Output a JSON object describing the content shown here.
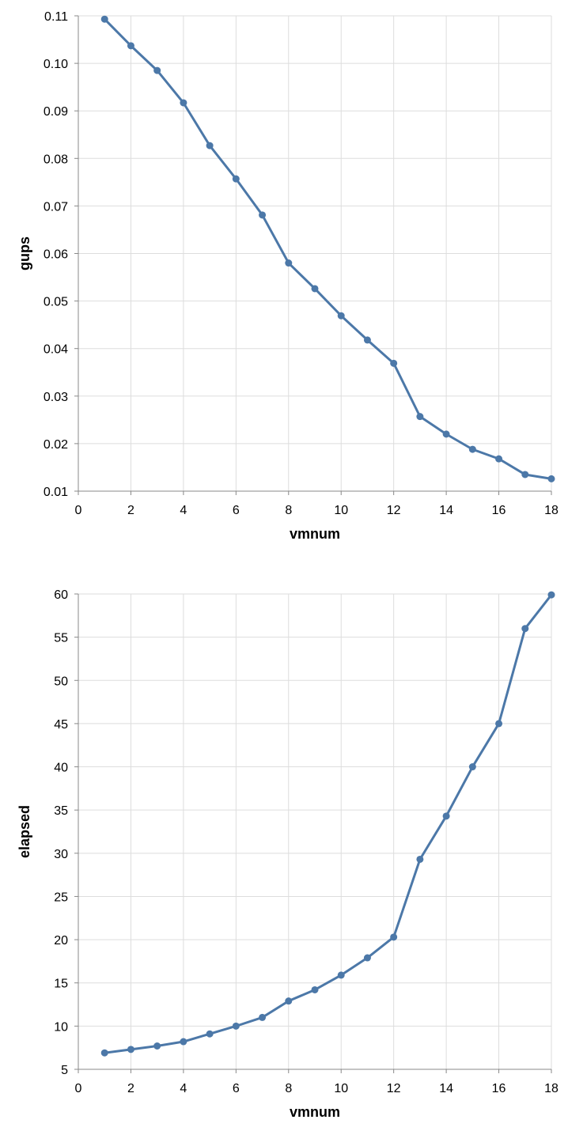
{
  "colors": {
    "series": "#4c78a8",
    "grid": "#dddddd",
    "axis": "#888888"
  },
  "chart_data": [
    {
      "type": "line",
      "xlabel": "vmnum",
      "ylabel": "gups",
      "xlim": [
        0,
        18
      ],
      "ylim": [
        0.01,
        0.11
      ],
      "x_ticks": [
        0,
        2,
        4,
        6,
        8,
        10,
        12,
        14,
        16,
        18
      ],
      "y_ticks": [
        "0.01",
        "0.02",
        "0.03",
        "0.04",
        "0.05",
        "0.06",
        "0.07",
        "0.08",
        "0.09",
        "0.10",
        "0.11"
      ],
      "grid": true,
      "markers": true,
      "x": [
        1,
        2,
        3,
        4,
        5,
        6,
        7,
        8,
        9,
        10,
        11,
        12,
        13,
        14,
        15,
        16,
        17,
        18
      ],
      "y": [
        0.1093,
        0.1037,
        0.0985,
        0.0917,
        0.0827,
        0.0757,
        0.0681,
        0.058,
        0.0526,
        0.0469,
        0.0418,
        0.0369,
        0.0257,
        0.022,
        0.0188,
        0.0168,
        0.0135,
        0.0126
      ]
    },
    {
      "type": "line",
      "xlabel": "vmnum",
      "ylabel": "elapsed",
      "xlim": [
        0,
        18
      ],
      "ylim": [
        5,
        60
      ],
      "x_ticks": [
        0,
        2,
        4,
        6,
        8,
        10,
        12,
        14,
        16,
        18
      ],
      "y_ticks": [
        "5",
        "10",
        "15",
        "20",
        "25",
        "30",
        "35",
        "40",
        "45",
        "50",
        "55",
        "60"
      ],
      "grid": true,
      "markers": true,
      "x": [
        1,
        2,
        3,
        4,
        5,
        6,
        7,
        8,
        9,
        10,
        11,
        12,
        13,
        14,
        15,
        16,
        17,
        18
      ],
      "y": [
        6.9,
        7.3,
        7.7,
        8.2,
        9.1,
        10.0,
        11.0,
        12.9,
        14.2,
        15.9,
        17.9,
        20.3,
        29.3,
        34.3,
        40.0,
        45.0,
        56.0,
        59.9
      ]
    }
  ]
}
